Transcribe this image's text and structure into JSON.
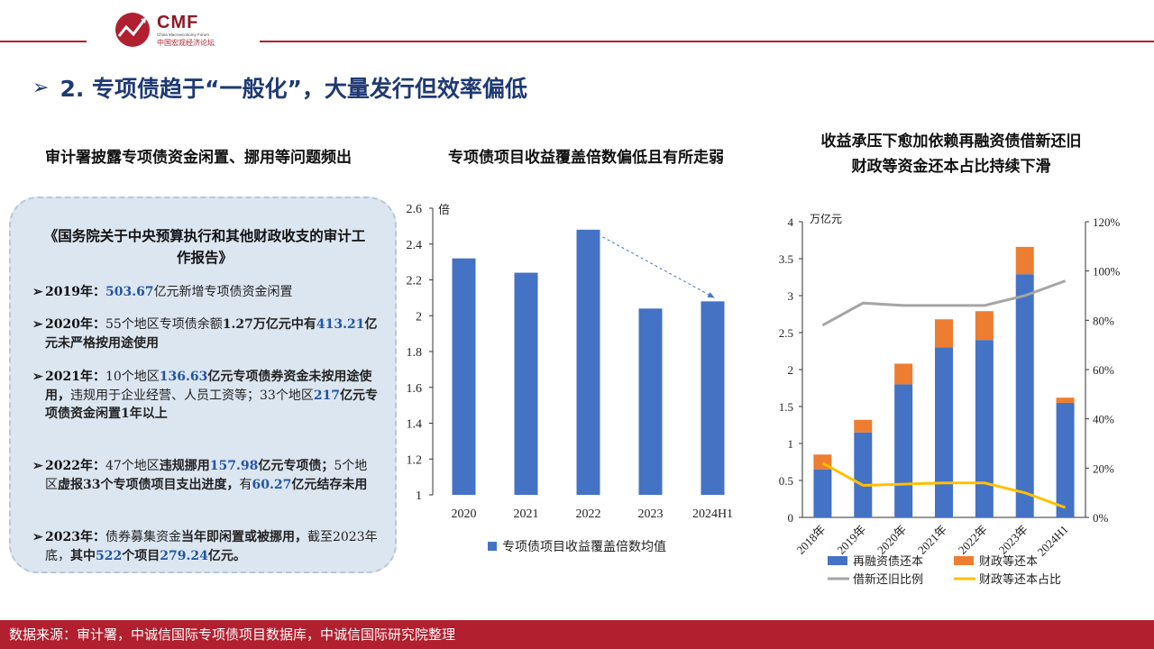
{
  "logo": {
    "brand": "CMF",
    "subtitle": "China Macroeconomy Forum",
    "cn_name": "中国宏观经济论坛"
  },
  "section_title": "2. 专项债趋于“一般化”，大量发行但效率偏低",
  "left_panel": {
    "heading": "审计署披露专项债资金闲置、挪用等问题频出",
    "box_title": "《国务院关于中央预算执行和其他财政收支的审计工作报告》",
    "bullets": [
      {
        "year": "2019年：",
        "parts": [
          [
            "num",
            "503.67"
          ],
          [
            "txt",
            "亿元新增专项债资金闲置"
          ]
        ]
      },
      {
        "year": "2020年：",
        "parts": [
          [
            "txt",
            "55个地区专项债余额"
          ],
          [
            "bold",
            "1.27万亿元中有"
          ],
          [
            "num",
            "413.21"
          ],
          [
            "bold",
            "亿元未严格按用途使用"
          ]
        ]
      },
      {
        "year": "2021年：",
        "parts": [
          [
            "txt",
            "10个地区"
          ],
          [
            "num",
            "136.63"
          ],
          [
            "bold",
            "亿元专项债券资金未按用途使用，"
          ],
          [
            "txt",
            "违规用于企业经营、人员工资等；33个地区"
          ],
          [
            "num",
            "217"
          ],
          [
            "bold",
            "亿元专项债资金闲置1年以上"
          ]
        ]
      },
      {
        "year": "2022年：",
        "parts": [
          [
            "txt",
            "47个地区"
          ],
          [
            "bold",
            "违规挪用"
          ],
          [
            "num",
            "157.98"
          ],
          [
            "bold",
            "亿元专项债；"
          ],
          [
            "txt",
            "5个地区"
          ],
          [
            "bold",
            "虚报33个专项债项目支出进度，"
          ],
          [
            "txt",
            "有"
          ],
          [
            "num",
            "60.27"
          ],
          [
            "bold",
            "亿元结存未用"
          ]
        ]
      },
      {
        "year": "2023年：",
        "parts": [
          [
            "txt",
            "债券募集资金"
          ],
          [
            "bold",
            "当年即闲置或被挪用，"
          ],
          [
            "txt",
            "截至2023年底，"
          ],
          [
            "bold",
            "其中"
          ],
          [
            "num",
            "522"
          ],
          [
            "bold",
            "个项目"
          ],
          [
            "num",
            "279.24"
          ],
          [
            "bold",
            "亿元。"
          ]
        ]
      }
    ]
  },
  "mid_panel": {
    "heading": "专项债项目收益覆盖倍数偏低且有所走弱",
    "chart_data": {
      "type": "bar",
      "categories": [
        "2020",
        "2021",
        "2022",
        "2023",
        "2024H1"
      ],
      "values": [
        2.32,
        2.24,
        2.48,
        2.04,
        2.08
      ],
      "ylabel": "倍",
      "ylim": [
        1,
        2.6
      ],
      "yticks": [
        "1",
        "1.2",
        "1.4",
        "1.6",
        "1.8",
        "2",
        "2.2",
        "2.4",
        "2.6"
      ],
      "legend": "专项债项目收益覆盖倍数均值",
      "color": "#4472c4",
      "arrow_annotation": "dashed arrow from 2022 to 2024H1"
    }
  },
  "right_panel": {
    "heading_line1": "收益承压下愈加依赖再融资债借新还旧",
    "heading_line2": "财政等资金还本占比持续下滑",
    "chart_data": {
      "type": "bar",
      "categories": [
        "2018年",
        "2019年",
        "2020年",
        "2021年",
        "2022年",
        "2023年",
        "2024H1"
      ],
      "ylabel": "万亿元",
      "ylim": [
        0,
        4
      ],
      "yticks": [
        "0",
        "0.5",
        "1",
        "1.5",
        "2",
        "2.5",
        "3",
        "3.5",
        "4"
      ],
      "y2lim": [
        0,
        1.2
      ],
      "y2ticks": [
        "0%",
        "20%",
        "40%",
        "60%",
        "80%",
        "100%",
        "120%"
      ],
      "series": [
        {
          "name": "再融资债还本",
          "type": "bar",
          "color": "#4472c4",
          "values": [
            0.65,
            1.15,
            1.8,
            2.3,
            2.4,
            3.29,
            1.55
          ]
        },
        {
          "name": "财政等还本",
          "type": "bar",
          "color": "#ed7d31",
          "values": [
            0.2,
            0.17,
            0.28,
            0.38,
            0.39,
            0.37,
            0.07
          ]
        },
        {
          "name": "借新还旧比例",
          "type": "line",
          "axis": "right",
          "color": "#a5a5a5",
          "values": [
            0.78,
            0.87,
            0.86,
            0.86,
            0.86,
            0.9,
            0.96
          ]
        },
        {
          "name": "财政等还本占比",
          "type": "line",
          "axis": "right",
          "color": "#ffc000",
          "values": [
            0.22,
            0.13,
            0.135,
            0.14,
            0.14,
            0.1,
            0.04
          ]
        }
      ]
    }
  },
  "footer": "数据来源：审计署，中诚信国际专项债项目数据库，中诚信国际研究院整理"
}
